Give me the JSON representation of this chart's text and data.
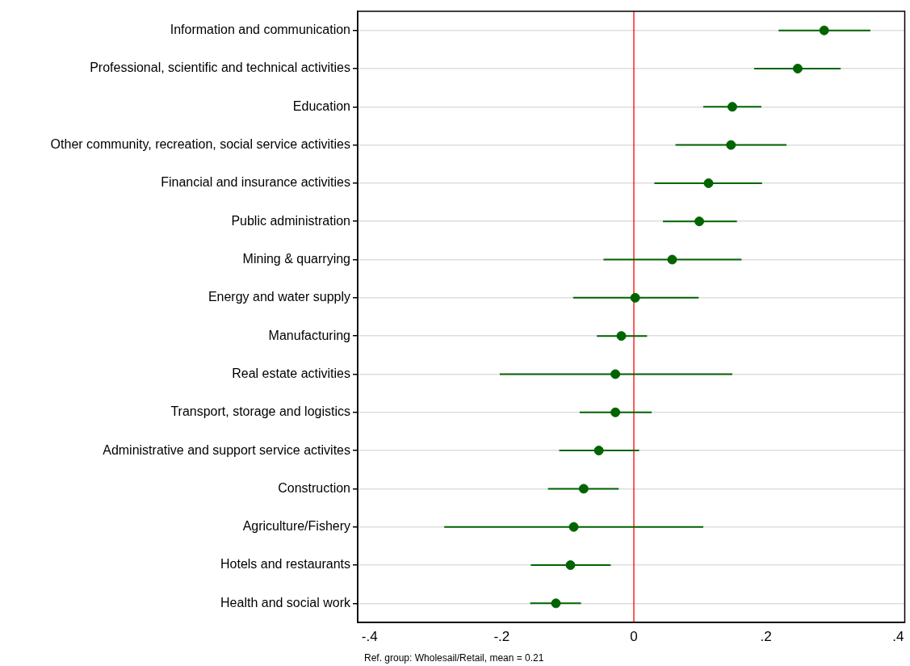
{
  "chart_data": {
    "type": "scatter",
    "orientation": "horizontal",
    "categories": [
      "Information and communication",
      "Professional, scientific and technical activities",
      "Education",
      "Other community, recreation, social service activities",
      "Financial and insurance activities",
      "Public administration",
      "Mining & quarrying",
      "Energy and water supply",
      "Manufacturing",
      "Real estate activities",
      "Transport, storage and logistics",
      "Administrative and support service activites",
      "Construction",
      "Agriculture/Fishery",
      "Hotels and restaurants",
      "Health and social work"
    ],
    "values": [
      0.288,
      0.248,
      0.149,
      0.147,
      0.113,
      0.099,
      0.058,
      0.002,
      -0.019,
      -0.028,
      -0.028,
      -0.053,
      -0.076,
      -0.091,
      -0.096,
      -0.118
    ],
    "errors": [
      [
        0.219,
        0.358
      ],
      [
        0.182,
        0.313
      ],
      [
        0.105,
        0.193
      ],
      [
        0.063,
        0.231
      ],
      [
        0.031,
        0.194
      ],
      [
        0.044,
        0.156
      ],
      [
        -0.046,
        0.163
      ],
      [
        -0.092,
        0.098
      ],
      [
        -0.056,
        0.02
      ],
      [
        -0.203,
        0.149
      ],
      [
        -0.082,
        0.027
      ],
      [
        -0.113,
        0.008
      ],
      [
        -0.13,
        -0.023
      ],
      [
        -0.287,
        0.105
      ],
      [
        -0.156,
        -0.035
      ],
      [
        -0.157,
        -0.08
      ]
    ],
    "color": "#006400",
    "xlim": [
      -0.418,
      0.41
    ],
    "xticks": [
      {
        "value": -0.4,
        "label": "-.4"
      },
      {
        "value": -0.2,
        "label": "-.2"
      },
      0,
      {
        "value": 0.2,
        "label": ".2"
      },
      {
        "value": 0.4,
        "label": ".4"
      }
    ],
    "ref_lines": [
      {
        "axis": "x",
        "value": 0,
        "color": "#ff0000"
      }
    ],
    "grid": "y",
    "marker": "circle",
    "annotations": [
      "Ref. group: Wholesail/Retail, mean = 0.21"
    ]
  }
}
